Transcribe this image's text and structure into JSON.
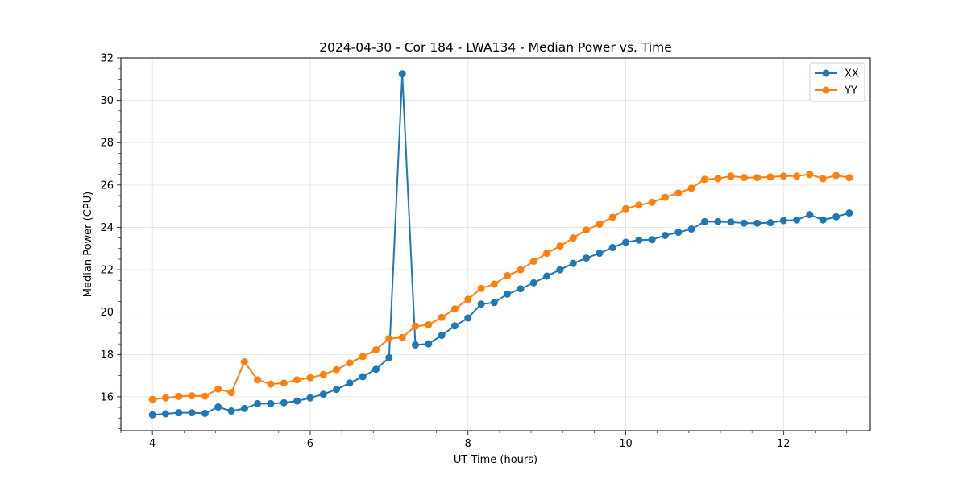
{
  "chart_data": {
    "type": "line",
    "title": "2024-04-30 - Cor 184 - LWA134 - Median Power vs. Time",
    "xlabel": "UT Time (hours)",
    "ylabel": "Median Power (CPU)",
    "xlim": [
      3.6,
      13.1
    ],
    "ylim": [
      14.4,
      32
    ],
    "xticks": [
      4,
      6,
      8,
      10,
      12
    ],
    "yticks": [
      16,
      18,
      20,
      22,
      24,
      26,
      28,
      30,
      32
    ],
    "grid": true,
    "legend_position": "top-right",
    "x": [
      4.0,
      4.167,
      4.333,
      4.5,
      4.667,
      4.833,
      5.0,
      5.167,
      5.333,
      5.5,
      5.667,
      5.833,
      6.0,
      6.167,
      6.333,
      6.5,
      6.667,
      6.833,
      7.0,
      7.167,
      7.333,
      7.5,
      7.667,
      7.833,
      8.0,
      8.167,
      8.333,
      8.5,
      8.667,
      8.833,
      9.0,
      9.167,
      9.333,
      9.5,
      9.667,
      9.833,
      10.0,
      10.167,
      10.333,
      10.5,
      10.667,
      10.833,
      11.0,
      11.167,
      11.333,
      11.5,
      11.667,
      11.833,
      12.0,
      12.167,
      12.333,
      12.5,
      12.667,
      12.833
    ],
    "series": [
      {
        "name": "XX",
        "color": "#1f77b4",
        "values": [
          15.15,
          15.2,
          15.25,
          15.25,
          15.22,
          15.52,
          15.33,
          15.45,
          15.68,
          15.68,
          15.72,
          15.8,
          15.95,
          16.12,
          16.35,
          16.65,
          16.95,
          17.3,
          17.85,
          31.25,
          18.45,
          18.5,
          18.9,
          19.35,
          19.72,
          20.38,
          20.45,
          20.85,
          21.1,
          21.38,
          21.7,
          22.0,
          22.3,
          22.55,
          22.78,
          23.05,
          23.3,
          23.4,
          23.42,
          23.62,
          23.77,
          23.92,
          24.27,
          24.27,
          24.25,
          24.2,
          24.2,
          24.22,
          24.32,
          24.35,
          24.6,
          24.35,
          24.5,
          24.68
        ]
      },
      {
        "name": "YY",
        "color": "#ff7f0e",
        "values": [
          15.88,
          15.95,
          16.02,
          16.05,
          16.03,
          16.37,
          16.2,
          17.65,
          16.8,
          16.6,
          16.65,
          16.8,
          16.9,
          17.05,
          17.28,
          17.6,
          17.9,
          18.22,
          18.75,
          18.8,
          19.33,
          19.4,
          19.75,
          20.15,
          20.6,
          21.12,
          21.32,
          21.72,
          22.0,
          22.4,
          22.78,
          23.12,
          23.5,
          23.88,
          24.15,
          24.48,
          24.88,
          25.05,
          25.18,
          25.42,
          25.62,
          25.85,
          26.27,
          26.3,
          26.42,
          26.35,
          26.35,
          26.38,
          26.42,
          26.42,
          26.5,
          26.3,
          26.45,
          26.35
        ]
      }
    ]
  }
}
